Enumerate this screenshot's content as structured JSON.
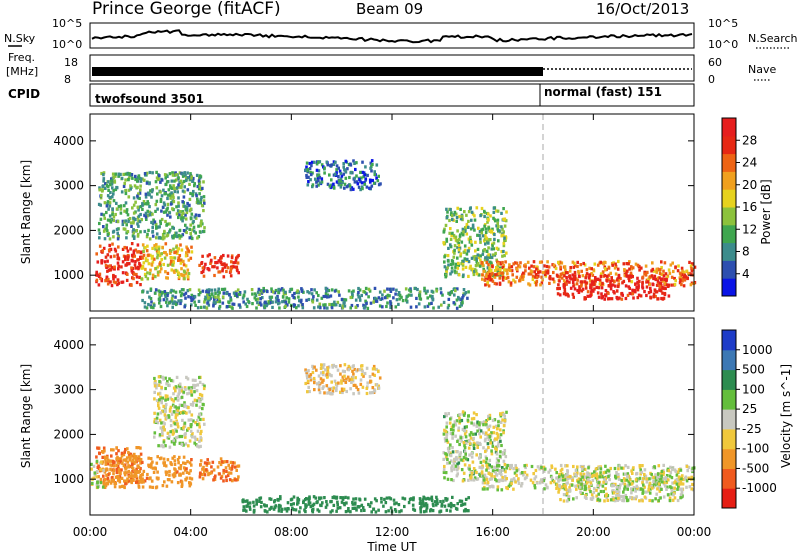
{
  "header": {
    "station": "Prince George (fitACF)",
    "beam": "Beam 09",
    "date": "16/Oct/2013"
  },
  "strips": {
    "nsky_label": "N.Sky",
    "nsky_ticks": [
      "10^5",
      "10^0"
    ],
    "nsearch_label": "N.Search",
    "freq_label_1": "Freq.",
    "freq_label_2": "[MHz]",
    "freq_ticks": [
      "18",
      "8"
    ],
    "nave_label": "Nave",
    "nave_ticks": [
      "60",
      "0"
    ],
    "cpid_label": "CPID",
    "cpid_modes": [
      {
        "name": "twofsound 3501",
        "start": "00:00",
        "end": "18:00"
      },
      {
        "name": "normal (fast) 151",
        "start": "18:00",
        "end": "24:00"
      }
    ]
  },
  "colorbars": {
    "power": {
      "label": "Power [dB]",
      "ticks": [
        "4",
        "8",
        "12",
        "16",
        "20",
        "24",
        "28"
      ],
      "colors": [
        "#0a14e6",
        "#2d4fb0",
        "#3c8c8c",
        "#3fa64f",
        "#8cc23c",
        "#e6d21e",
        "#f0a01e",
        "#ee6414",
        "#e62814",
        "#e61e1e"
      ]
    },
    "velocity": {
      "label": "Velocity [m s^-1]",
      "ticks": [
        "1000",
        "500",
        "100",
        "25",
        "-25",
        "-100",
        "-500",
        "-1000"
      ],
      "colors": [
        "#1e3cc8",
        "#3c78b4",
        "#2d8c50",
        "#64be3c",
        "#c8c8c0",
        "#f0c83c",
        "#f09628",
        "#f05a1e",
        "#e61e14"
      ]
    }
  },
  "chart_data": [
    {
      "type": "heatmap",
      "name": "power",
      "ylabel": "Slant Range [km]",
      "yticks": [
        "1000",
        "2000",
        "3000",
        "4000"
      ],
      "ylim": [
        200,
        4600
      ],
      "xlim_hours": [
        0,
        24
      ],
      "xticks": [
        "00:00",
        "04:00",
        "08:00",
        "12:00",
        "16:00",
        "20:00",
        "00:00"
      ],
      "colorbar_range_db": [
        0,
        30
      ],
      "regions": [
        {
          "t0": 0.2,
          "t1": 2.0,
          "r0": 750,
          "r1": 1700,
          "level": 26
        },
        {
          "t0": 2.0,
          "t1": 4.0,
          "r0": 900,
          "r1": 1700,
          "level": 18
        },
        {
          "t0": 4.3,
          "t1": 5.9,
          "r0": 950,
          "r1": 1450,
          "level": 26
        },
        {
          "t0": 0.3,
          "t1": 4.5,
          "r0": 1800,
          "r1": 3300,
          "level": 10
        },
        {
          "t0": 8.5,
          "t1": 11.5,
          "r0": 2900,
          "r1": 3550,
          "level": 6
        },
        {
          "t0": 14.0,
          "t1": 16.5,
          "r0": 950,
          "r1": 2500,
          "level": 12
        },
        {
          "t0": 15.5,
          "t1": 24.0,
          "r0": 750,
          "r1": 1300,
          "level": 22
        },
        {
          "t0": 18.5,
          "t1": 23.0,
          "r0": 450,
          "r1": 1000,
          "level": 28
        },
        {
          "t0": 2.0,
          "t1": 15.0,
          "r0": 250,
          "r1": 700,
          "level": 8
        }
      ]
    },
    {
      "type": "heatmap",
      "name": "velocity",
      "ylabel": "Slant Range [km]",
      "yticks": [
        "1000",
        "2000",
        "3000",
        "4000"
      ],
      "ylim": [
        200,
        4600
      ],
      "xlim_hours": [
        0,
        24
      ],
      "xticks": [
        "00:00",
        "04:00",
        "08:00",
        "12:00",
        "16:00",
        "20:00",
        "00:00"
      ],
      "xlabel": "Time UT",
      "regions": [
        {
          "t0": 0.2,
          "t1": 2.0,
          "r0": 900,
          "r1": 1700,
          "velocity": -300
        },
        {
          "t0": 0.5,
          "t1": 4.0,
          "r0": 800,
          "r1": 1500,
          "velocity": -250
        },
        {
          "t0": 4.3,
          "t1": 5.9,
          "r0": 950,
          "r1": 1450,
          "velocity": -300
        },
        {
          "t0": 0.0,
          "t1": 0.5,
          "r0": 800,
          "r1": 1400,
          "velocity": 0
        },
        {
          "t0": 2.5,
          "t1": 4.5,
          "r0": 1700,
          "r1": 3300,
          "velocity": 0
        },
        {
          "t0": 8.5,
          "t1": 11.5,
          "r0": 2900,
          "r1": 3550,
          "velocity": -40
        },
        {
          "t0": 14.0,
          "t1": 16.5,
          "r0": 950,
          "r1": 2500,
          "velocity": 10
        },
        {
          "t0": 15.5,
          "t1": 24.0,
          "r0": 750,
          "r1": 1300,
          "velocity": 0
        },
        {
          "t0": 18.5,
          "t1": 23.5,
          "r0": 500,
          "r1": 1100,
          "velocity": 0
        },
        {
          "t0": 6.0,
          "t1": 15.0,
          "r0": 250,
          "r1": 600,
          "velocity": 150
        }
      ]
    }
  ]
}
